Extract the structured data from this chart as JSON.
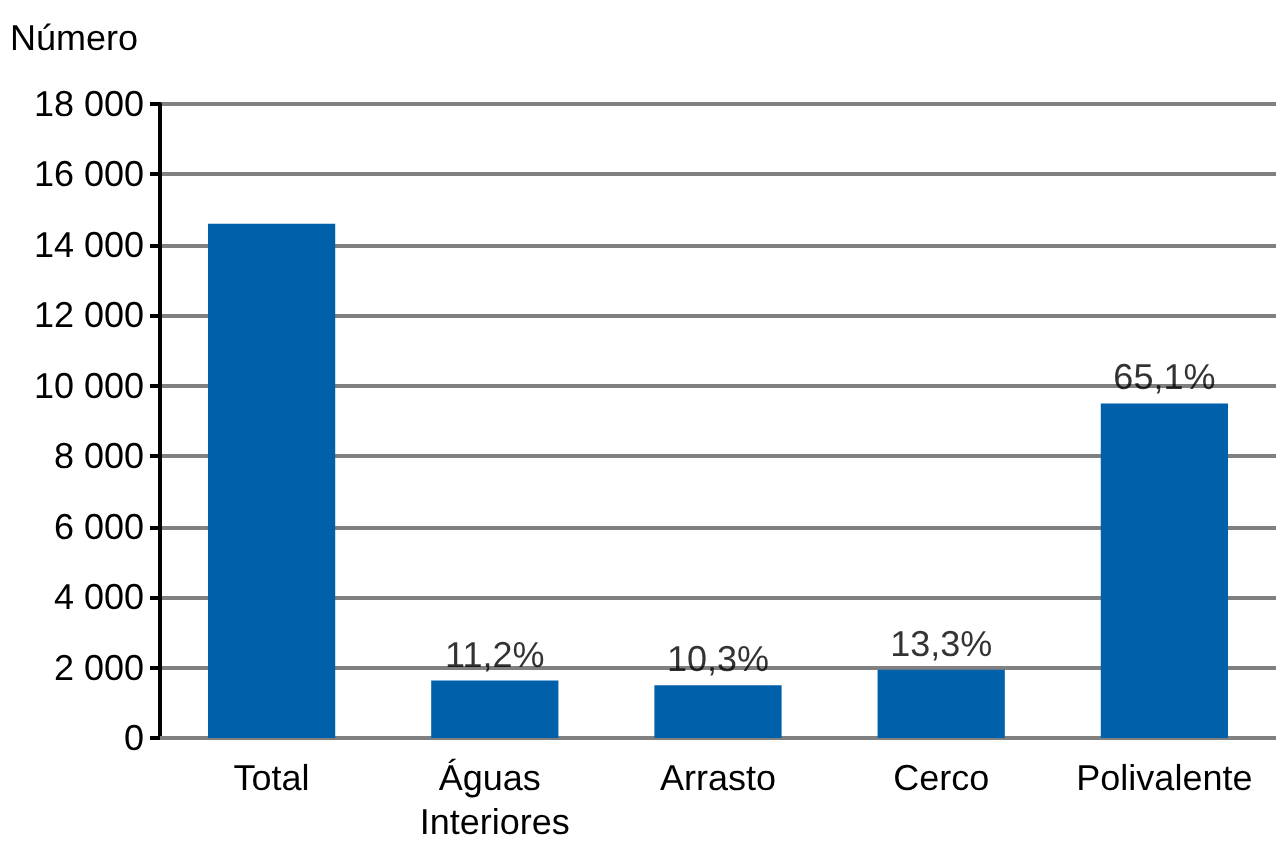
{
  "chart_data": {
    "type": "bar",
    "ylabel": "Número",
    "categories": [
      "Total",
      "Águas Interiores",
      "Arrasto",
      "Cerco",
      "Polivalente"
    ],
    "values": [
      14600,
      1630,
      1500,
      1940,
      9500
    ],
    "color": "#0061aa",
    "annotations": [
      {
        "text": "11,2%",
        "x": "Águas Interiores",
        "y": 1630
      },
      {
        "text": "10,3%",
        "x": "Arrasto",
        "y": 1500
      },
      {
        "text": "13,3%",
        "x": "Cerco",
        "y": 1940
      },
      {
        "text": "65,1%",
        "x": "Polivalente",
        "y": 9500
      }
    ],
    "ylim": [
      0,
      18000
    ],
    "yticks": [
      {
        "value": 0,
        "label": "0"
      },
      {
        "value": 2000,
        "label": "2 000"
      },
      {
        "value": 4000,
        "label": "4 000"
      },
      {
        "value": 6000,
        "label": "6 000"
      },
      {
        "value": 8000,
        "label": "8 000"
      },
      {
        "value": 10000,
        "label": "10 000"
      },
      {
        "value": 12000,
        "label": "12 000"
      },
      {
        "value": 14000,
        "label": "14 000"
      },
      {
        "value": 16000,
        "label": "16 000"
      },
      {
        "value": 18000,
        "label": "18 000"
      }
    ],
    "grid": true
  }
}
